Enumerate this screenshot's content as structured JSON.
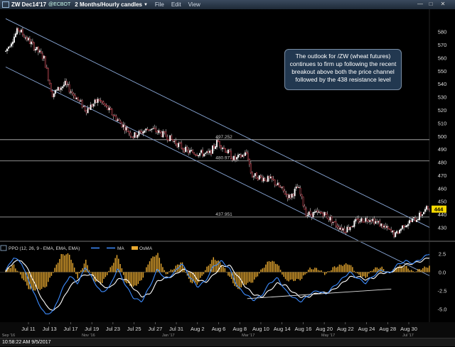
{
  "window": {
    "symbol": "ZW Dec14'17",
    "exchange": "@ECBOT",
    "interval": "2 Months/Hourly candles",
    "menu": [
      "File",
      "Edit",
      "View"
    ]
  },
  "annotation": "The outlook for /ZW (wheat futures) continues to firm up following the recent breakout above both the price channel followed by the 438 resistance level",
  "status": "10:58:22 AM 9/5/2017",
  "colors": {
    "background": "#000000",
    "ppo_line": "#3d8cff",
    "signal": "#ffffff",
    "histogram": "#e8a930",
    "last_price": "#f5d800"
  },
  "chart_data": [
    {
      "type": "candlestick",
      "panel": "price",
      "ylim": [
        421,
        588
      ],
      "y_ticks": [
        430,
        440,
        450,
        460,
        470,
        480,
        490,
        500,
        510,
        520,
        530,
        540,
        550,
        560,
        570,
        580
      ],
      "last_price": "444",
      "last_value": 444,
      "horizontal_levels": [
        {
          "value": 497.252,
          "label": "497.252"
        },
        {
          "value": 480.977,
          "label": "480.977"
        },
        {
          "value": 437.951,
          "label": "437.951"
        }
      ],
      "x_axis": [
        "Jul 11",
        "Jul 13",
        "Jul 17",
        "Jul 19",
        "Jul 23",
        "Jul 25",
        "Jul 27",
        "Jul 31",
        "Aug 2",
        "Aug 6",
        "Aug 8",
        "Aug 10",
        "Aug 14",
        "Aug 16",
        "Aug 20",
        "Aug 22",
        "Aug 24",
        "Aug 28",
        "Aug 30"
      ],
      "x_axis_secondary": [
        "Sep '16",
        "Nov '16",
        "Jan '17",
        "Mar '17",
        "May '17",
        "Jul '17"
      ],
      "price_channel": {
        "upper": [
          [
            0,
            590
          ],
          [
            1,
            430
          ]
        ],
        "lower": [
          [
            0,
            553
          ],
          [
            1,
            393
          ]
        ]
      },
      "trend_path": [
        [
          0,
          565
        ],
        [
          0.03,
          582
        ],
        [
          0.09,
          560
        ],
        [
          0.11,
          532
        ],
        [
          0.14,
          540
        ],
        [
          0.19,
          520
        ],
        [
          0.22,
          528
        ],
        [
          0.3,
          500
        ],
        [
          0.34,
          506
        ],
        [
          0.38,
          500
        ],
        [
          0.43,
          488
        ],
        [
          0.48,
          486
        ],
        [
          0.5,
          496
        ],
        [
          0.54,
          482
        ],
        [
          0.57,
          487
        ],
        [
          0.58,
          470
        ],
        [
          0.63,
          466
        ],
        [
          0.67,
          453
        ],
        [
          0.69,
          461
        ],
        [
          0.71,
          440
        ],
        [
          0.75,
          441
        ],
        [
          0.78,
          432
        ],
        [
          0.8,
          428
        ],
        [
          0.83,
          435
        ],
        [
          0.86,
          437
        ],
        [
          0.89,
          431
        ],
        [
          0.92,
          424
        ],
        [
          0.94,
          432
        ],
        [
          0.97,
          437
        ],
        [
          1.0,
          446
        ]
      ]
    },
    {
      "type": "line",
      "panel": "indicator",
      "legend": [
        "PPO (12, 26, 9 - EMA, EMA, EMA)",
        "MA",
        "OsMA"
      ],
      "ylim": [
        -6.5,
        3.6
      ],
      "y_ticks": [
        -5.0,
        -2.5,
        0.0,
        2.5
      ],
      "y_tick_labels": [
        "-5.0",
        "-2.5",
        "0.0",
        "2.5"
      ],
      "series": [
        {
          "name": "PPO",
          "values": [
            0.2,
            2.0,
            1.2,
            -1.5,
            -4.0,
            -5.8,
            -5.2,
            -2.5,
            -0.5,
            -1.5,
            0.7,
            -1.2,
            -2.8,
            -2.0,
            0.5,
            -1.8,
            -3.5,
            -4.0,
            -2.0,
            0.4,
            -1.0,
            -0.2,
            1.2,
            -0.6,
            -2.0,
            -1.2,
            0.8,
            1.5,
            0.5,
            -2.0,
            -3.0,
            -3.8,
            -3.2,
            -1.5,
            -0.8,
            -2.5,
            -3.5,
            -4.0,
            -3.0,
            -2.5,
            -3.0,
            -2.0,
            -1.0,
            0.0,
            -0.8,
            -1.5,
            -0.5,
            0.3,
            -0.2,
            1.0,
            1.5,
            1.2,
            1.8,
            2.5
          ]
        },
        {
          "name": "MA",
          "values": [
            0.0,
            1.4,
            1.6,
            0.0,
            -2.5,
            -4.5,
            -5.3,
            -4.0,
            -2.0,
            -1.0,
            -0.3,
            -0.5,
            -1.8,
            -2.2,
            -1.0,
            -0.9,
            -2.2,
            -3.3,
            -3.0,
            -1.2,
            -0.8,
            -0.5,
            0.3,
            0.2,
            -1.0,
            -1.4,
            -0.4,
            0.8,
            0.9,
            -0.5,
            -2.0,
            -3.0,
            -3.4,
            -2.5,
            -1.5,
            -1.8,
            -2.8,
            -3.4,
            -3.3,
            -2.8,
            -2.8,
            -2.4,
            -1.6,
            -0.7,
            -0.6,
            -1.0,
            -0.8,
            -0.1,
            -0.1,
            0.5,
            1.0,
            1.2,
            1.5,
            2.0
          ]
        }
      ],
      "trend_line": [
        [
          0.57,
          -3.6
        ],
        [
          0.91,
          -2.3
        ]
      ]
    }
  ]
}
